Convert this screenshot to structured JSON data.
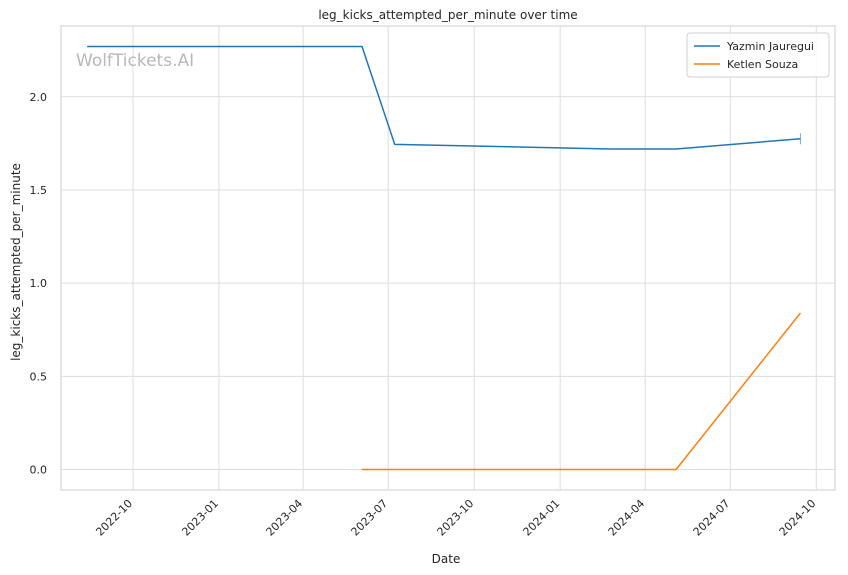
{
  "chart_data": {
    "type": "line",
    "title": "leg_kicks_attempted_per_minute over time",
    "xlabel": "Date",
    "ylabel": "leg_kicks_attempted_per_minute",
    "watermark": "WolfTickets.AI",
    "x_ticks": [
      "2022-10",
      "2023-01",
      "2023-04",
      "2023-07",
      "2023-10",
      "2024-01",
      "2024-04",
      "2024-07",
      "2024-10"
    ],
    "y_ticks": [
      "0.0",
      "0.5",
      "1.0",
      "1.5",
      "2.0"
    ],
    "ylim": [
      -0.11,
      2.38
    ],
    "xlim": [
      "2022-07-16",
      "2024-10-21"
    ],
    "grid": true,
    "legend_position": "top-right",
    "series": [
      {
        "name": "Yazmin Jauregui",
        "color": "#1f77b4",
        "points": [
          {
            "x": "2022-08-13",
            "y": 2.27
          },
          {
            "x": "2023-06-03",
            "y": 2.27
          },
          {
            "x": "2023-07-08",
            "y": 1.745
          },
          {
            "x": "2024-02-24",
            "y": 1.72
          },
          {
            "x": "2024-05-04",
            "y": 1.72
          },
          {
            "x": "2024-09-14",
            "y": 1.775
          }
        ],
        "errorbar": {
          "x": "2024-09-14",
          "low": 1.745,
          "high": 1.805
        }
      },
      {
        "name": "Ketlen Souza",
        "color": "#ff7f0e",
        "points": [
          {
            "x": "2023-06-03",
            "y": 0.0
          },
          {
            "x": "2024-05-04",
            "y": 0.0
          },
          {
            "x": "2024-09-14",
            "y": 0.84
          }
        ]
      }
    ]
  }
}
